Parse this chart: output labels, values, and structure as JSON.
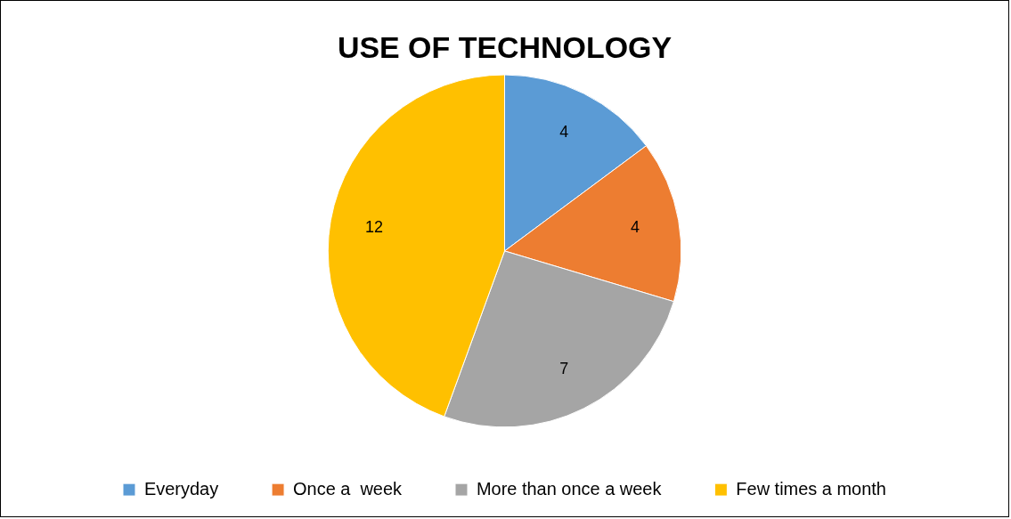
{
  "chart_data": {
    "type": "pie",
    "title": "USE OF TECHNOLOGY",
    "categories": [
      "Everyday",
      "Once a  week",
      "More than once a week",
      "Few times a month"
    ],
    "values": [
      4,
      4,
      7,
      12
    ],
    "colors": [
      "#5b9bd5",
      "#ed7d31",
      "#a5a5a5",
      "#ffc000"
    ],
    "data_labels": true,
    "legend": "bottom"
  }
}
